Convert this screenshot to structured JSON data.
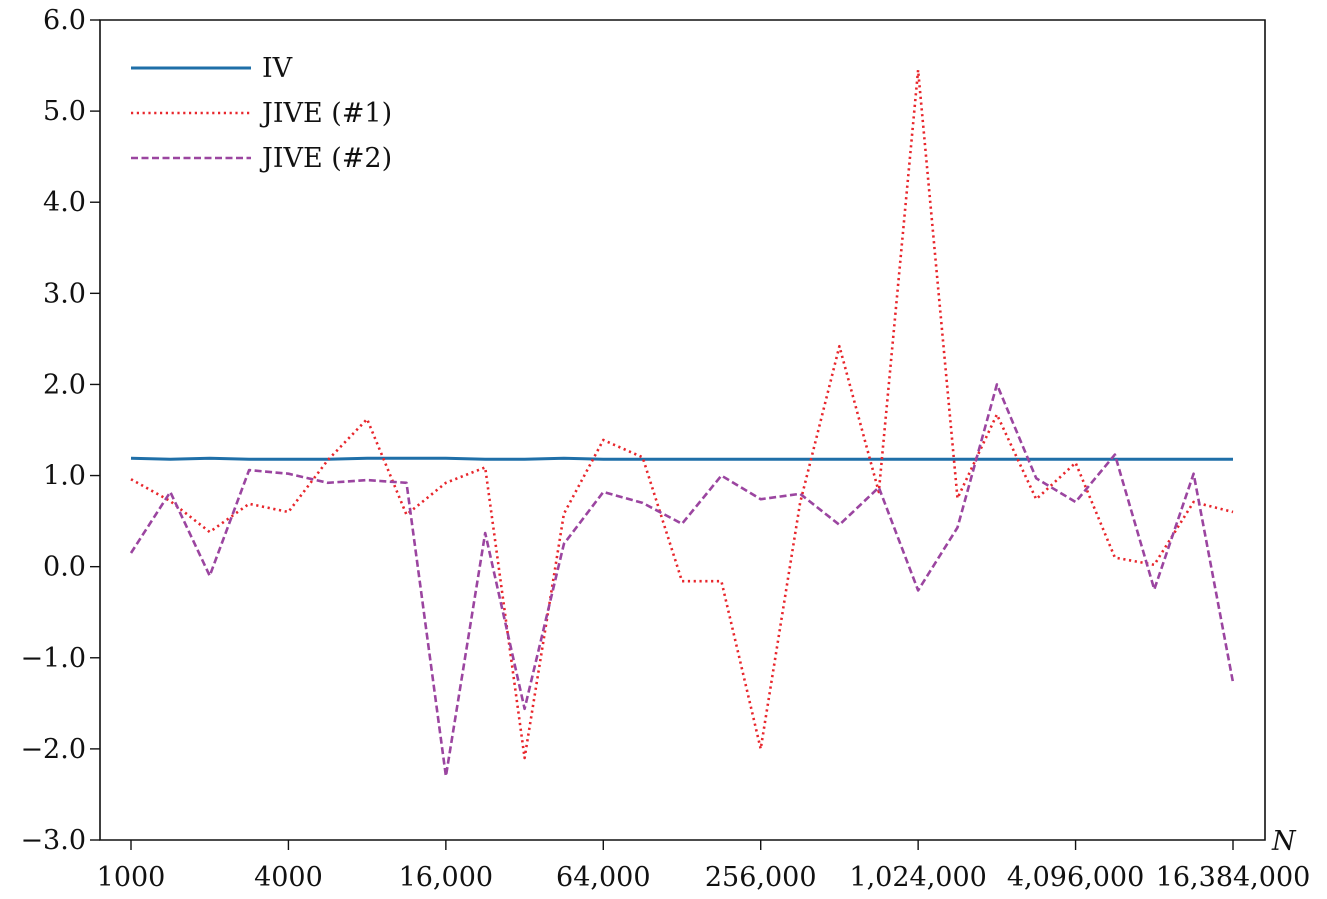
{
  "chart_data": {
    "type": "line",
    "xlabel": "N",
    "ylabel": "",
    "x_scale": "log2",
    "x_tick_values": [
      1000,
      4000,
      16000,
      64000,
      256000,
      1024000,
      4096000,
      16384000
    ],
    "x_tick_labels": [
      "1000",
      "4000",
      "16,000",
      "64,000",
      "256,000",
      "1,024,000",
      "4,096,000",
      "16,384,000"
    ],
    "ylim": [
      -3.0,
      6.0
    ],
    "y_tick_values": [
      -3.0,
      -2.0,
      -1.0,
      0.0,
      1.0,
      2.0,
      3.0,
      4.0,
      5.0,
      6.0
    ],
    "y_tick_labels": [
      "−3.0",
      "−2.0",
      "−1.0",
      "0.0",
      "1.0",
      "2.0",
      "3.0",
      "4.0",
      "5.0",
      "6.0"
    ],
    "grid": false,
    "legend_position": "top-left",
    "x": [
      1000,
      1414,
      2000,
      2828,
      4000,
      5657,
      8000,
      11314,
      16000,
      22627,
      32000,
      45255,
      64000,
      90510,
      128000,
      181019,
      256000,
      362039,
      512000,
      724077,
      1024000,
      1448155,
      2048000,
      2896309,
      4096000,
      5792619,
      8192000,
      11585237,
      16384000
    ],
    "series": [
      {
        "name": "IV",
        "color": "#1f6fa8",
        "style": "solid",
        "values": [
          1.19,
          1.18,
          1.19,
          1.18,
          1.18,
          1.18,
          1.19,
          1.19,
          1.19,
          1.18,
          1.18,
          1.19,
          1.18,
          1.18,
          1.18,
          1.18,
          1.18,
          1.18,
          1.18,
          1.18,
          1.18,
          1.18,
          1.18,
          1.18,
          1.18,
          1.18,
          1.18,
          1.18,
          1.18
        ]
      },
      {
        "name": "JIVE (#1)",
        "color": "#e8262c",
        "style": "dotted",
        "values": [
          0.96,
          0.72,
          0.38,
          0.69,
          0.6,
          1.17,
          1.62,
          0.57,
          0.92,
          1.09,
          -2.1,
          0.58,
          1.39,
          1.2,
          -0.16,
          -0.16,
          -2.0,
          0.7,
          2.42,
          0.82,
          5.45,
          0.75,
          1.67,
          0.74,
          1.14,
          0.1,
          0.02,
          0.71,
          0.6
        ]
      },
      {
        "name": "JIVE (#2)",
        "color": "#9b45a0",
        "style": "dashed",
        "values": [
          0.15,
          0.82,
          -0.1,
          1.06,
          1.02,
          0.92,
          0.95,
          0.92,
          -2.3,
          0.37,
          -1.56,
          0.25,
          0.82,
          0.7,
          0.47,
          1.0,
          0.74,
          0.8,
          0.46,
          0.87,
          -0.26,
          0.43,
          2.0,
          0.97,
          0.71,
          1.23,
          -0.25,
          1.02,
          -1.27
        ]
      }
    ]
  }
}
